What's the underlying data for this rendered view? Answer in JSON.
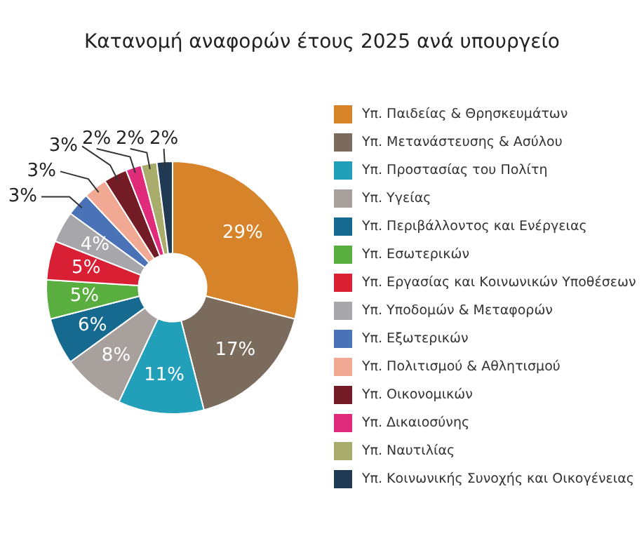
{
  "chart_data": {
    "type": "donut",
    "title": "Κατανομή αναφορών έτους 2025 ανά υπουργείο",
    "categories": [
      "Υπ. Παιδείας & Θρησκευμάτων",
      "Υπ. Μετανάστευσης & Ασύλου",
      "Υπ. Προστασίας του Πολίτη",
      "Υπ. Υγείας",
      "Υπ. Περιβάλλοντος και Ενέργειας",
      "Υπ. Εσωτερικών",
      "Υπ. Εργασίας και Κοινωνικών Υποθέσεων",
      "Υπ. Υποδομών & Μεταφορών",
      "Υπ. Εξωτερικών",
      "Υπ. Πολιτισμού & Αθλητισμού",
      "Υπ. Οικονομικών",
      "Υπ. Δικαιοσύνης",
      "Υπ. Ναυτιλίας",
      "Υπ. Κοινωνικής Συνοχής και Οικογένειας"
    ],
    "values": [
      29,
      17,
      11,
      8,
      6,
      5,
      5,
      4,
      3,
      3,
      3,
      2,
      2,
      2
    ],
    "value_labels": [
      "29%",
      "17%",
      "11%",
      "8%",
      "6%",
      "5%",
      "5%",
      "4%",
      "3%",
      "3%",
      "3%",
      "2%",
      "2%",
      "2%"
    ],
    "colors": [
      "#d6832a",
      "#7b6b5c",
      "#23a0b9",
      "#a8a09d",
      "#176a8f",
      "#5aae3f",
      "#d81f34",
      "#a7a7ab",
      "#4a72b7",
      "#f2a994",
      "#741c25",
      "#e02b7a",
      "#a8ad6c",
      "#1f3a52"
    ],
    "legend": "right"
  }
}
